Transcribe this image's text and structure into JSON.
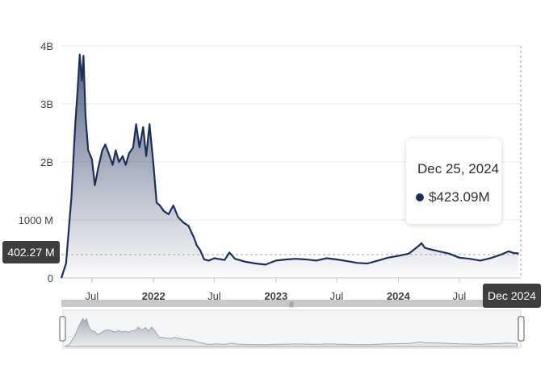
{
  "chart_data": {
    "type": "area",
    "x_ticks": [
      "Jul",
      "2022",
      "Jul",
      "2023",
      "Jul",
      "2024",
      "Jul"
    ],
    "y_ticks": [
      "0",
      "1000 M",
      "2B",
      "3B",
      "4B"
    ],
    "ylim": [
      0,
      4000000000
    ],
    "xlim": [
      "2021-04-01",
      "2024-12-31"
    ],
    "grid": "horizontal",
    "series": [
      {
        "color": "#1c2f5a",
        "points": [
          [
            "2021-04-01",
            0
          ],
          [
            "2021-04-15",
            250000000
          ],
          [
            "2021-05-01",
            1400000000
          ],
          [
            "2021-05-12",
            2600000000
          ],
          [
            "2021-05-20",
            3300000000
          ],
          [
            "2021-05-26",
            3850000000
          ],
          [
            "2021-06-01",
            3400000000
          ],
          [
            "2021-06-06",
            3830000000
          ],
          [
            "2021-06-12",
            2800000000
          ],
          [
            "2021-06-20",
            2200000000
          ],
          [
            "2021-07-01",
            2050000000
          ],
          [
            "2021-07-10",
            1600000000
          ],
          [
            "2021-07-20",
            1900000000
          ],
          [
            "2021-08-01",
            2200000000
          ],
          [
            "2021-08-10",
            2300000000
          ],
          [
            "2021-08-20",
            2150000000
          ],
          [
            "2021-09-01",
            1950000000
          ],
          [
            "2021-09-10",
            2200000000
          ],
          [
            "2021-09-20",
            2000000000
          ],
          [
            "2021-10-01",
            2100000000
          ],
          [
            "2021-10-10",
            1950000000
          ],
          [
            "2021-10-20",
            2150000000
          ],
          [
            "2021-11-01",
            2250000000
          ],
          [
            "2021-11-10",
            2650000000
          ],
          [
            "2021-11-20",
            2250000000
          ],
          [
            "2021-12-01",
            2600000000
          ],
          [
            "2021-12-10",
            2100000000
          ],
          [
            "2021-12-20",
            2650000000
          ],
          [
            "2021-12-31",
            2000000000
          ],
          [
            "2022-01-10",
            1300000000
          ],
          [
            "2022-01-20",
            1250000000
          ],
          [
            "2022-02-01",
            1150000000
          ],
          [
            "2022-02-15",
            1100000000
          ],
          [
            "2022-03-01",
            1250000000
          ],
          [
            "2022-03-15",
            1050000000
          ],
          [
            "2022-04-01",
            950000000
          ],
          [
            "2022-04-15",
            900000000
          ],
          [
            "2022-05-01",
            700000000
          ],
          [
            "2022-05-10",
            560000000
          ],
          [
            "2022-05-20",
            480000000
          ],
          [
            "2022-06-01",
            320000000
          ],
          [
            "2022-06-15",
            300000000
          ],
          [
            "2022-07-01",
            340000000
          ],
          [
            "2022-08-01",
            310000000
          ],
          [
            "2022-08-15",
            440000000
          ],
          [
            "2022-09-01",
            330000000
          ],
          [
            "2022-10-01",
            280000000
          ],
          [
            "2022-11-01",
            250000000
          ],
          [
            "2022-12-01",
            230000000
          ],
          [
            "2023-01-01",
            300000000
          ],
          [
            "2023-02-01",
            320000000
          ],
          [
            "2023-03-01",
            330000000
          ],
          [
            "2023-04-01",
            320000000
          ],
          [
            "2023-05-01",
            300000000
          ],
          [
            "2023-06-01",
            340000000
          ],
          [
            "2023-07-01",
            320000000
          ],
          [
            "2023-08-01",
            290000000
          ],
          [
            "2023-09-01",
            260000000
          ],
          [
            "2023-10-01",
            250000000
          ],
          [
            "2023-11-01",
            300000000
          ],
          [
            "2023-12-01",
            350000000
          ],
          [
            "2024-01-01",
            380000000
          ],
          [
            "2024-02-01",
            420000000
          ],
          [
            "2024-03-01",
            550000000
          ],
          [
            "2024-03-10",
            600000000
          ],
          [
            "2024-03-20",
            520000000
          ],
          [
            "2024-04-01",
            500000000
          ],
          [
            "2024-05-01",
            460000000
          ],
          [
            "2024-06-01",
            420000000
          ],
          [
            "2024-07-01",
            350000000
          ],
          [
            "2024-08-01",
            330000000
          ],
          [
            "2024-09-01",
            300000000
          ],
          [
            "2024-10-01",
            340000000
          ],
          [
            "2024-11-01",
            400000000
          ],
          [
            "2024-11-25",
            460000000
          ],
          [
            "2024-12-10",
            430000000
          ],
          [
            "2024-12-25",
            423090000
          ]
        ]
      }
    ],
    "tooltip": {
      "date": "Dec 25, 2024",
      "value": "$423.09M"
    },
    "y_marker_label": "402.27 M",
    "x_marker_label": "Dec 2024"
  }
}
